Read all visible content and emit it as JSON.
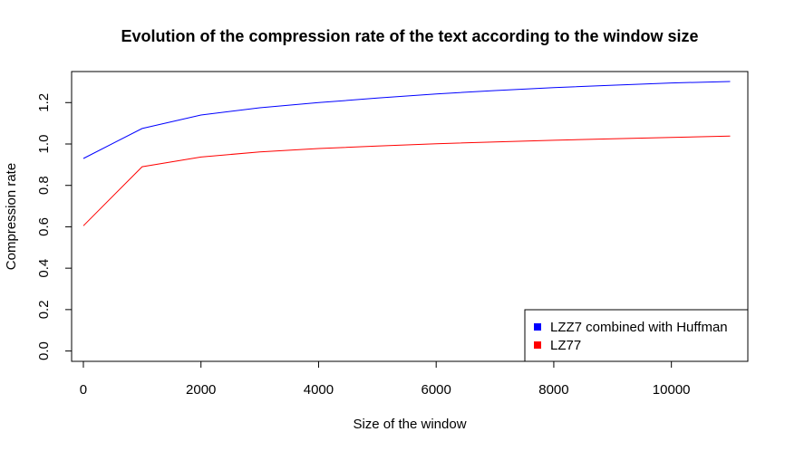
{
  "chart_data": {
    "type": "line",
    "title": "Evolution of the compression rate of the text according to the window size",
    "xlabel": "Size of the window",
    "ylabel": "Compression rate",
    "xlim": [
      -200,
      11300
    ],
    "ylim": [
      -0.05,
      1.35
    ],
    "x_ticks": [
      0,
      2000,
      4000,
      6000,
      8000,
      10000
    ],
    "x_tick_labels": [
      "0",
      "2000",
      "4000",
      "6000",
      "8000",
      "10000"
    ],
    "y_ticks": [
      0.0,
      0.2,
      0.4,
      0.6,
      0.8,
      1.0,
      1.2
    ],
    "y_tick_labels": [
      "0.0",
      "0.2",
      "0.4",
      "0.6",
      "0.8",
      "1.0",
      "1.2"
    ],
    "grid": false,
    "legend_position": "bottom-right",
    "x": [
      1,
      1000,
      2000,
      3000,
      4000,
      5000,
      6000,
      7000,
      8000,
      9000,
      10000,
      11000
    ],
    "series": [
      {
        "name": "LZZ7 combined with Huffman",
        "color": "#0000ff",
        "values": [
          0.93,
          1.075,
          1.14,
          1.175,
          1.2,
          1.222,
          1.242,
          1.258,
          1.272,
          1.284,
          1.295,
          1.302
        ]
      },
      {
        "name": "LZ77",
        "color": "#ff0000",
        "values": [
          0.605,
          0.89,
          0.937,
          0.962,
          0.978,
          0.99,
          1.001,
          1.01,
          1.018,
          1.025,
          1.032,
          1.038
        ]
      }
    ]
  }
}
